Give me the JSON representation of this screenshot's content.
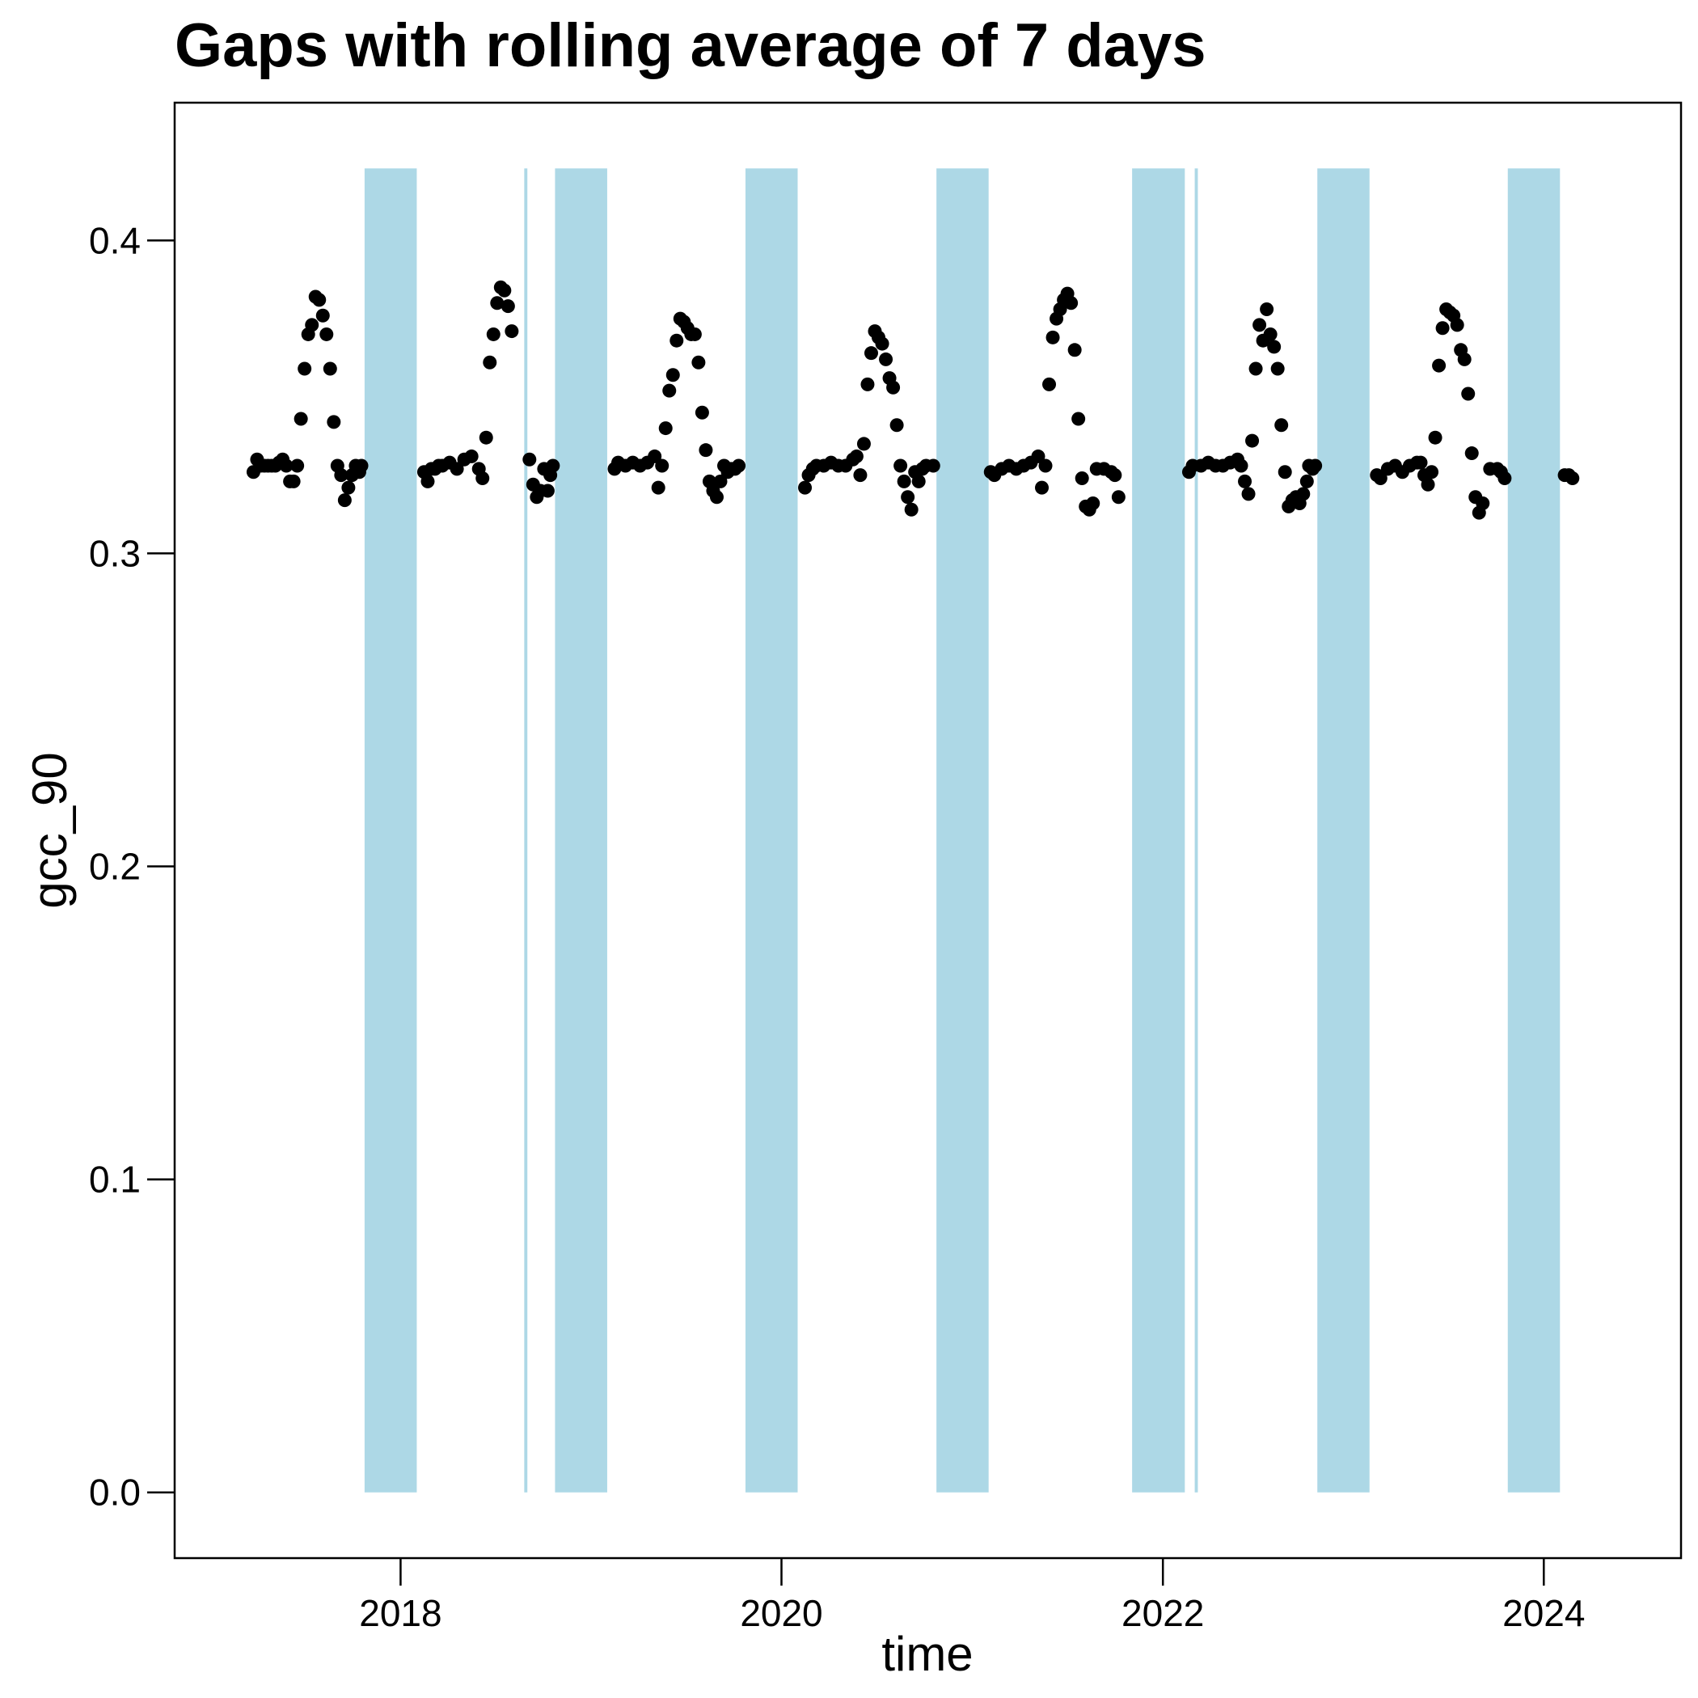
{
  "chart_data": {
    "type": "scatter",
    "title": "Gaps with rolling average of 7 days",
    "xlabel": "time",
    "ylabel": "gcc_90",
    "x_type": "date",
    "x_range": [
      "2016-10-25",
      "2024-09-20"
    ],
    "ylim": [
      -0.021,
      0.444
    ],
    "x_ticks": [
      {
        "value": "2018-01-01",
        "label": "2018"
      },
      {
        "value": "2020-01-01",
        "label": "2020"
      },
      {
        "value": "2022-01-01",
        "label": "2022"
      },
      {
        "value": "2024-01-01",
        "label": "2024"
      }
    ],
    "y_ticks": [
      {
        "value": 0.0,
        "label": "0.0"
      },
      {
        "value": 0.1,
        "label": "0.1"
      },
      {
        "value": 0.2,
        "label": "0.2"
      },
      {
        "value": 0.3,
        "label": "0.3"
      },
      {
        "value": 0.4,
        "label": "0.4"
      }
    ],
    "grid": false,
    "gap_color": "#add8e6",
    "point_color": "#000000",
    "gap_ymin": 0.0,
    "gap_ymax": 0.423,
    "gaps": [
      {
        "start": "2017-10-24",
        "end": "2018-02-01"
      },
      {
        "start": "2018-08-26",
        "end": "2018-09-01"
      },
      {
        "start": "2018-10-24",
        "end": "2019-02-01"
      },
      {
        "start": "2019-10-24",
        "end": "2020-02-01"
      },
      {
        "start": "2020-10-24",
        "end": "2021-02-01"
      },
      {
        "start": "2021-11-03",
        "end": "2022-02-12"
      },
      {
        "start": "2022-03-03",
        "end": "2022-03-09"
      },
      {
        "start": "2022-10-24",
        "end": "2023-02-01"
      },
      {
        "start": "2023-10-24",
        "end": "2024-02-01"
      }
    ],
    "points": [
      [
        "2017-03-25",
        0.326
      ],
      [
        "2017-04-01",
        0.33
      ],
      [
        "2017-04-08",
        0.328
      ],
      [
        "2017-04-15",
        0.328
      ],
      [
        "2017-04-22",
        0.328
      ],
      [
        "2017-04-29",
        0.328
      ],
      [
        "2017-05-06",
        0.328
      ],
      [
        "2017-05-13",
        0.329
      ],
      [
        "2017-05-20",
        0.33
      ],
      [
        "2017-05-27",
        0.328
      ],
      [
        "2017-06-03",
        0.323
      ],
      [
        "2017-06-10",
        0.323
      ],
      [
        "2017-06-17",
        0.328
      ],
      [
        "2017-06-24",
        0.343
      ],
      [
        "2017-07-01",
        0.359
      ],
      [
        "2017-07-08",
        0.37
      ],
      [
        "2017-07-15",
        0.373
      ],
      [
        "2017-07-22",
        0.382
      ],
      [
        "2017-07-29",
        0.381
      ],
      [
        "2017-08-05",
        0.376
      ],
      [
        "2017-08-12",
        0.37
      ],
      [
        "2017-08-19",
        0.359
      ],
      [
        "2017-08-26",
        0.342
      ],
      [
        "2017-09-02",
        0.328
      ],
      [
        "2017-09-09",
        0.325
      ],
      [
        "2017-09-16",
        0.317
      ],
      [
        "2017-09-23",
        0.321
      ],
      [
        "2017-09-30",
        0.325
      ],
      [
        "2017-10-07",
        0.328
      ],
      [
        "2017-10-14",
        0.326
      ],
      [
        "2017-10-18",
        0.328
      ],
      [
        "2018-02-15",
        0.326
      ],
      [
        "2018-02-22",
        0.323
      ],
      [
        "2018-03-01",
        0.327
      ],
      [
        "2018-03-08",
        0.327
      ],
      [
        "2018-03-15",
        0.328
      ],
      [
        "2018-03-22",
        0.328
      ],
      [
        "2018-04-05",
        0.329
      ],
      [
        "2018-04-19",
        0.327
      ],
      [
        "2018-05-03",
        0.33
      ],
      [
        "2018-05-17",
        0.331
      ],
      [
        "2018-05-31",
        0.327
      ],
      [
        "2018-06-07",
        0.324
      ],
      [
        "2018-06-14",
        0.337
      ],
      [
        "2018-06-21",
        0.361
      ],
      [
        "2018-06-28",
        0.37
      ],
      [
        "2018-07-05",
        0.38
      ],
      [
        "2018-07-12",
        0.385
      ],
      [
        "2018-07-19",
        0.384
      ],
      [
        "2018-07-26",
        0.379
      ],
      [
        "2018-08-02",
        0.371
      ],
      [
        "2018-09-05",
        0.33
      ],
      [
        "2018-09-12",
        0.322
      ],
      [
        "2018-09-19",
        0.318
      ],
      [
        "2018-09-26",
        0.32
      ],
      [
        "2018-10-03",
        0.327
      ],
      [
        "2018-10-10",
        0.32
      ],
      [
        "2018-10-15",
        0.325
      ],
      [
        "2018-10-20",
        0.328
      ],
      [
        "2019-02-15",
        0.327
      ],
      [
        "2019-02-22",
        0.329
      ],
      [
        "2019-03-08",
        0.328
      ],
      [
        "2019-03-22",
        0.329
      ],
      [
        "2019-04-05",
        0.328
      ],
      [
        "2019-04-19",
        0.329
      ],
      [
        "2019-05-03",
        0.331
      ],
      [
        "2019-05-10",
        0.321
      ],
      [
        "2019-05-17",
        0.328
      ],
      [
        "2019-05-24",
        0.34
      ],
      [
        "2019-05-31",
        0.352
      ],
      [
        "2019-06-07",
        0.357
      ],
      [
        "2019-06-14",
        0.368
      ],
      [
        "2019-06-21",
        0.375
      ],
      [
        "2019-06-28",
        0.374
      ],
      [
        "2019-07-05",
        0.372
      ],
      [
        "2019-07-12",
        0.37
      ],
      [
        "2019-07-19",
        0.37
      ],
      [
        "2019-07-26",
        0.361
      ],
      [
        "2019-08-02",
        0.345
      ],
      [
        "2019-08-09",
        0.333
      ],
      [
        "2019-08-16",
        0.323
      ],
      [
        "2019-08-23",
        0.32
      ],
      [
        "2019-08-30",
        0.318
      ],
      [
        "2019-09-06",
        0.323
      ],
      [
        "2019-09-13",
        0.328
      ],
      [
        "2019-09-20",
        0.326
      ],
      [
        "2019-09-27",
        0.327
      ],
      [
        "2019-10-04",
        0.327
      ],
      [
        "2019-10-11",
        0.328
      ],
      [
        "2020-02-15",
        0.321
      ],
      [
        "2020-02-22",
        0.325
      ],
      [
        "2020-03-01",
        0.327
      ],
      [
        "2020-03-08",
        0.328
      ],
      [
        "2020-03-22",
        0.328
      ],
      [
        "2020-04-05",
        0.329
      ],
      [
        "2020-04-19",
        0.328
      ],
      [
        "2020-05-03",
        0.328
      ],
      [
        "2020-05-17",
        0.33
      ],
      [
        "2020-05-24",
        0.331
      ],
      [
        "2020-05-31",
        0.325
      ],
      [
        "2020-06-07",
        0.335
      ],
      [
        "2020-06-14",
        0.354
      ],
      [
        "2020-06-21",
        0.364
      ],
      [
        "2020-06-28",
        0.371
      ],
      [
        "2020-07-05",
        0.369
      ],
      [
        "2020-07-12",
        0.367
      ],
      [
        "2020-07-19",
        0.362
      ],
      [
        "2020-07-26",
        0.356
      ],
      [
        "2020-08-02",
        0.353
      ],
      [
        "2020-08-09",
        0.341
      ],
      [
        "2020-08-16",
        0.328
      ],
      [
        "2020-08-23",
        0.323
      ],
      [
        "2020-08-30",
        0.318
      ],
      [
        "2020-09-06",
        0.314
      ],
      [
        "2020-09-13",
        0.326
      ],
      [
        "2020-09-20",
        0.323
      ],
      [
        "2020-09-27",
        0.327
      ],
      [
        "2020-10-04",
        0.328
      ],
      [
        "2020-10-18",
        0.328
      ],
      [
        "2021-02-05",
        0.326
      ],
      [
        "2021-02-12",
        0.325
      ],
      [
        "2021-02-26",
        0.327
      ],
      [
        "2021-03-12",
        0.328
      ],
      [
        "2021-03-26",
        0.327
      ],
      [
        "2021-04-09",
        0.328
      ],
      [
        "2021-04-23",
        0.329
      ],
      [
        "2021-05-07",
        0.331
      ],
      [
        "2021-05-14",
        0.321
      ],
      [
        "2021-05-21",
        0.328
      ],
      [
        "2021-05-28",
        0.354
      ],
      [
        "2021-06-04",
        0.369
      ],
      [
        "2021-06-11",
        0.375
      ],
      [
        "2021-06-18",
        0.378
      ],
      [
        "2021-06-25",
        0.381
      ],
      [
        "2021-07-02",
        0.383
      ],
      [
        "2021-07-09",
        0.38
      ],
      [
        "2021-07-16",
        0.365
      ],
      [
        "2021-07-23",
        0.343
      ],
      [
        "2021-07-30",
        0.324
      ],
      [
        "2021-08-06",
        0.315
      ],
      [
        "2021-08-13",
        0.314
      ],
      [
        "2021-08-20",
        0.316
      ],
      [
        "2021-08-27",
        0.327
      ],
      [
        "2021-09-10",
        0.327
      ],
      [
        "2021-09-24",
        0.326
      ],
      [
        "2021-10-01",
        0.325
      ],
      [
        "2021-10-08",
        0.318
      ],
      [
        "2022-02-20",
        0.326
      ],
      [
        "2022-02-27",
        0.328
      ],
      [
        "2022-03-15",
        0.328
      ],
      [
        "2022-03-29",
        0.329
      ],
      [
        "2022-04-12",
        0.328
      ],
      [
        "2022-04-26",
        0.328
      ],
      [
        "2022-05-10",
        0.329
      ],
      [
        "2022-05-24",
        0.33
      ],
      [
        "2022-05-31",
        0.328
      ],
      [
        "2022-06-07",
        0.323
      ],
      [
        "2022-06-14",
        0.319
      ],
      [
        "2022-06-21",
        0.336
      ],
      [
        "2022-06-28",
        0.359
      ],
      [
        "2022-07-05",
        0.373
      ],
      [
        "2022-07-12",
        0.368
      ],
      [
        "2022-07-19",
        0.378
      ],
      [
        "2022-07-26",
        0.37
      ],
      [
        "2022-08-02",
        0.366
      ],
      [
        "2022-08-09",
        0.359
      ],
      [
        "2022-08-16",
        0.341
      ],
      [
        "2022-08-23",
        0.326
      ],
      [
        "2022-08-30",
        0.315
      ],
      [
        "2022-09-06",
        0.317
      ],
      [
        "2022-09-13",
        0.318
      ],
      [
        "2022-09-20",
        0.316
      ],
      [
        "2022-09-27",
        0.319
      ],
      [
        "2022-10-04",
        0.323
      ],
      [
        "2022-10-08",
        0.328
      ],
      [
        "2022-10-15",
        0.327
      ],
      [
        "2022-10-20",
        0.328
      ],
      [
        "2023-02-15",
        0.325
      ],
      [
        "2023-02-22",
        0.324
      ],
      [
        "2023-03-08",
        0.327
      ],
      [
        "2023-03-22",
        0.328
      ],
      [
        "2023-04-05",
        0.326
      ],
      [
        "2023-04-19",
        0.328
      ],
      [
        "2023-05-03",
        0.329
      ],
      [
        "2023-05-10",
        0.329
      ],
      [
        "2023-05-17",
        0.325
      ],
      [
        "2023-05-24",
        0.322
      ],
      [
        "2023-05-31",
        0.326
      ],
      [
        "2023-06-07",
        0.337
      ],
      [
        "2023-06-14",
        0.36
      ],
      [
        "2023-06-21",
        0.372
      ],
      [
        "2023-06-28",
        0.378
      ],
      [
        "2023-07-05",
        0.377
      ],
      [
        "2023-07-12",
        0.376
      ],
      [
        "2023-07-19",
        0.373
      ],
      [
        "2023-07-26",
        0.365
      ],
      [
        "2023-08-02",
        0.362
      ],
      [
        "2023-08-09",
        0.351
      ],
      [
        "2023-08-16",
        0.332
      ],
      [
        "2023-08-23",
        0.318
      ],
      [
        "2023-08-30",
        0.313
      ],
      [
        "2023-09-06",
        0.316
      ],
      [
        "2023-09-20",
        0.327
      ],
      [
        "2023-10-04",
        0.327
      ],
      [
        "2023-10-11",
        0.326
      ],
      [
        "2023-10-18",
        0.324
      ],
      [
        "2024-02-10",
        0.325
      ],
      [
        "2024-02-18",
        0.325
      ],
      [
        "2024-02-25",
        0.324
      ]
    ]
  }
}
